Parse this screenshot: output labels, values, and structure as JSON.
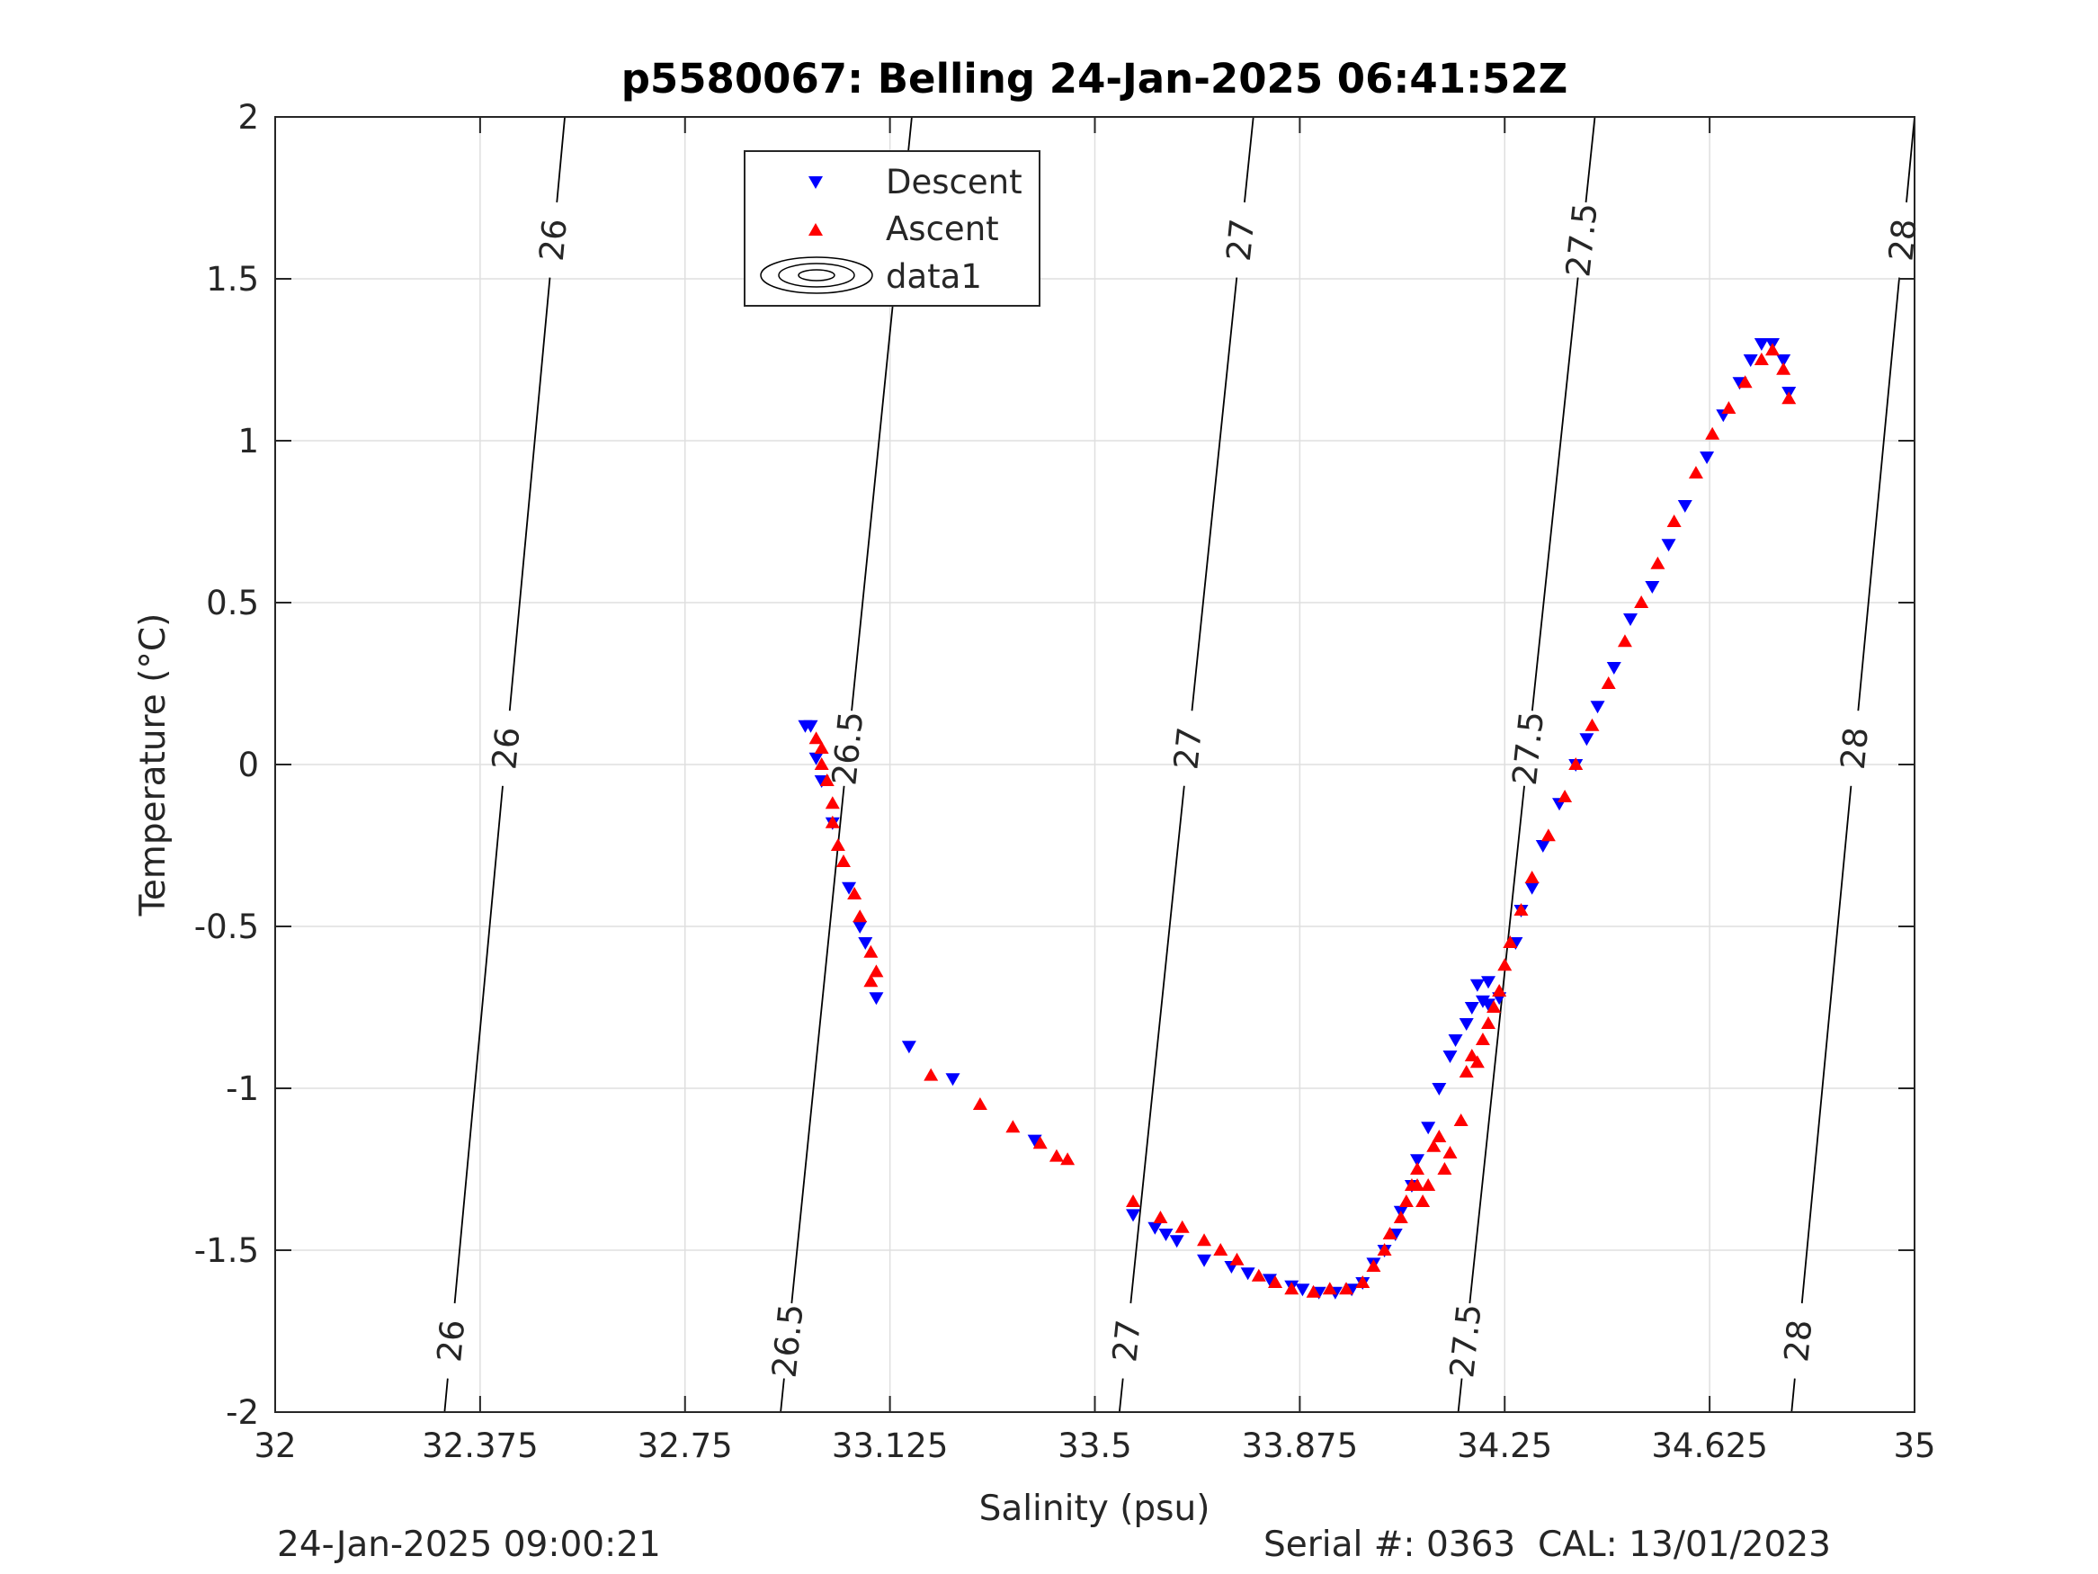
{
  "chart_data": {
    "type": "scatter",
    "title": "p5580067: Belling 24-Jan-2025 06:41:52Z",
    "xlabel": "Salinity (psu)",
    "ylabel": "Temperature (°C)",
    "xlim": [
      32,
      35
    ],
    "ylim": [
      -2,
      2
    ],
    "x_ticks": [
      32,
      32.375,
      32.75,
      33.125,
      33.5,
      33.875,
      34.25,
      34.625,
      35
    ],
    "x_tick_labels": [
      "32",
      "32.375",
      "32.75",
      "33.125",
      "33.5",
      "33.875",
      "34.25",
      "34.625",
      "35"
    ],
    "y_ticks": [
      2,
      1.5,
      1,
      0.5,
      0,
      -0.5,
      -1,
      -1.5,
      -2
    ],
    "y_tick_labels": [
      "2",
      "1.5",
      "1",
      "0.5",
      "0",
      "-0.5",
      "-1",
      "-1.5",
      "-2"
    ],
    "grid": true,
    "legend": {
      "placement": "top-center",
      "entries": [
        "Descent",
        "Ascent",
        "data1"
      ]
    },
    "series": [
      {
        "name": "Descent",
        "marker": "triangle-down",
        "color": "#0000ff",
        "points": [
          [
            32.97,
            0.12
          ],
          [
            32.98,
            0.12
          ],
          [
            32.99,
            0.02
          ],
          [
            33.0,
            -0.05
          ],
          [
            33.02,
            -0.18
          ],
          [
            33.05,
            -0.38
          ],
          [
            33.07,
            -0.5
          ],
          [
            33.08,
            -0.55
          ],
          [
            33.1,
            -0.72
          ],
          [
            33.16,
            -0.87
          ],
          [
            33.24,
            -0.97
          ],
          [
            33.39,
            -1.16
          ],
          [
            33.57,
            -1.39
          ],
          [
            33.61,
            -1.43
          ],
          [
            33.63,
            -1.45
          ],
          [
            33.65,
            -1.47
          ],
          [
            33.7,
            -1.53
          ],
          [
            33.75,
            -1.55
          ],
          [
            33.78,
            -1.57
          ],
          [
            33.82,
            -1.59
          ],
          [
            33.86,
            -1.61
          ],
          [
            33.88,
            -1.62
          ],
          [
            33.91,
            -1.63
          ],
          [
            33.94,
            -1.63
          ],
          [
            33.97,
            -1.62
          ],
          [
            33.99,
            -1.6
          ],
          [
            34.01,
            -1.54
          ],
          [
            34.03,
            -1.5
          ],
          [
            34.05,
            -1.45
          ],
          [
            34.06,
            -1.38
          ],
          [
            34.08,
            -1.3
          ],
          [
            34.09,
            -1.22
          ],
          [
            34.11,
            -1.12
          ],
          [
            34.13,
            -1.0
          ],
          [
            34.15,
            -0.9
          ],
          [
            34.16,
            -0.85
          ],
          [
            34.18,
            -0.8
          ],
          [
            34.19,
            -0.75
          ],
          [
            34.2,
            -0.68
          ],
          [
            34.21,
            -0.73
          ],
          [
            34.22,
            -0.67
          ],
          [
            34.22,
            -0.74
          ],
          [
            34.24,
            -0.72
          ],
          [
            34.27,
            -0.55
          ],
          [
            34.28,
            -0.45
          ],
          [
            34.3,
            -0.38
          ],
          [
            34.32,
            -0.25
          ],
          [
            34.35,
            -0.12
          ],
          [
            34.38,
            0.0
          ],
          [
            34.4,
            0.08
          ],
          [
            34.42,
            0.18
          ],
          [
            34.45,
            0.3
          ],
          [
            34.48,
            0.45
          ],
          [
            34.52,
            0.55
          ],
          [
            34.55,
            0.68
          ],
          [
            34.58,
            0.8
          ],
          [
            34.62,
            0.95
          ],
          [
            34.65,
            1.08
          ],
          [
            34.68,
            1.18
          ],
          [
            34.7,
            1.25
          ],
          [
            34.72,
            1.3
          ],
          [
            34.74,
            1.3
          ],
          [
            34.76,
            1.25
          ],
          [
            34.77,
            1.15
          ]
        ]
      },
      {
        "name": "Ascent",
        "marker": "triangle-up",
        "color": "#ff0000",
        "points": [
          [
            32.99,
            0.08
          ],
          [
            33.0,
            0.05
          ],
          [
            33.0,
            0.0
          ],
          [
            33.01,
            -0.05
          ],
          [
            33.02,
            -0.12
          ],
          [
            33.02,
            -0.18
          ],
          [
            33.03,
            -0.25
          ],
          [
            33.04,
            -0.3
          ],
          [
            33.06,
            -0.4
          ],
          [
            33.07,
            -0.47
          ],
          [
            33.09,
            -0.58
          ],
          [
            33.09,
            -0.67
          ],
          [
            33.1,
            -0.64
          ],
          [
            33.2,
            -0.96
          ],
          [
            33.29,
            -1.05
          ],
          [
            33.35,
            -1.12
          ],
          [
            33.4,
            -1.17
          ],
          [
            33.43,
            -1.21
          ],
          [
            33.45,
            -1.22
          ],
          [
            33.57,
            -1.35
          ],
          [
            33.62,
            -1.4
          ],
          [
            33.66,
            -1.43
          ],
          [
            33.7,
            -1.47
          ],
          [
            33.73,
            -1.5
          ],
          [
            33.76,
            -1.53
          ],
          [
            33.8,
            -1.58
          ],
          [
            33.83,
            -1.6
          ],
          [
            33.86,
            -1.62
          ],
          [
            33.9,
            -1.63
          ],
          [
            33.93,
            -1.62
          ],
          [
            33.96,
            -1.62
          ],
          [
            33.99,
            -1.6
          ],
          [
            34.01,
            -1.55
          ],
          [
            34.03,
            -1.5
          ],
          [
            34.04,
            -1.45
          ],
          [
            34.06,
            -1.4
          ],
          [
            34.07,
            -1.35
          ],
          [
            34.08,
            -1.3
          ],
          [
            34.09,
            -1.25
          ],
          [
            34.09,
            -1.3
          ],
          [
            34.1,
            -1.35
          ],
          [
            34.11,
            -1.3
          ],
          [
            34.12,
            -1.18
          ],
          [
            34.13,
            -1.15
          ],
          [
            34.14,
            -1.25
          ],
          [
            34.15,
            -1.2
          ],
          [
            34.17,
            -1.1
          ],
          [
            34.18,
            -0.95
          ],
          [
            34.19,
            -0.9
          ],
          [
            34.2,
            -0.92
          ],
          [
            34.21,
            -0.85
          ],
          [
            34.22,
            -0.8
          ],
          [
            34.23,
            -0.75
          ],
          [
            34.24,
            -0.7
          ],
          [
            34.25,
            -0.62
          ],
          [
            34.26,
            -0.55
          ],
          [
            34.28,
            -0.45
          ],
          [
            34.3,
            -0.35
          ],
          [
            34.33,
            -0.22
          ],
          [
            34.36,
            -0.1
          ],
          [
            34.38,
            0.0
          ],
          [
            34.41,
            0.12
          ],
          [
            34.44,
            0.25
          ],
          [
            34.47,
            0.38
          ],
          [
            34.5,
            0.5
          ],
          [
            34.53,
            0.62
          ],
          [
            34.56,
            0.75
          ],
          [
            34.6,
            0.9
          ],
          [
            34.63,
            1.02
          ],
          [
            34.66,
            1.1
          ],
          [
            34.69,
            1.18
          ],
          [
            34.72,
            1.25
          ],
          [
            34.74,
            1.28
          ],
          [
            34.76,
            1.22
          ],
          [
            34.77,
            1.13
          ]
        ]
      }
    ],
    "isopycnals": [
      {
        "label": "26",
        "x_at_bottom": 32.31,
        "x_at_top": 32.53
      },
      {
        "label": "26.5",
        "x_at_bottom": 32.925,
        "x_at_top": 33.165
      },
      {
        "label": "27",
        "x_at_bottom": 33.545,
        "x_at_top": 33.79
      },
      {
        "label": "27.5",
        "x_at_bottom": 34.165,
        "x_at_top": 34.415
      },
      {
        "label": "28",
        "x_at_bottom": 34.775,
        "x_at_top": 35.0
      }
    ]
  },
  "footer": {
    "timestamp": "24-Jan-2025 09:00:21",
    "serial": "Serial #: 0363  CAL: 13/01/2023"
  }
}
